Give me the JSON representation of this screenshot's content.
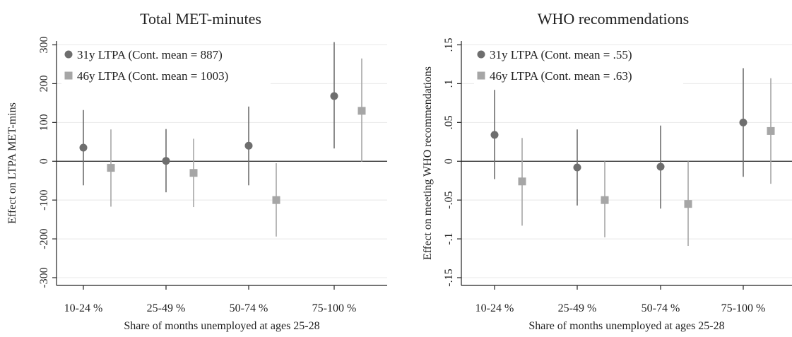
{
  "colors": {
    "series_31y": "#6e6e6e",
    "series_46y": "#a6a6a6",
    "axis": "#222222",
    "grid": "#e8e8e8"
  },
  "chart_data": [
    {
      "type": "scatter",
      "title": "Total MET-minutes",
      "xlabel": "Share of months unemployed at ages 25-28",
      "ylabel": "Effect on LTPA MET-mins",
      "categories": [
        "10-24 %",
        "25-49 %",
        "50-74 %",
        "75-100 %"
      ],
      "ylim": [
        -320,
        310
      ],
      "yticks": [
        -300,
        -200,
        -100,
        0,
        100,
        200,
        300
      ],
      "ytick_labels": [
        "-300",
        "-200",
        "-100",
        "0",
        "100",
        "200",
        "300"
      ],
      "grid": true,
      "zero_line": true,
      "legend_position": "top-left",
      "series": [
        {
          "name": "31y LTPA (Cont. mean = 887)",
          "marker": "circle",
          "values": [
            35,
            1,
            40,
            168
          ],
          "ci_low": [
            -62,
            -80,
            -62,
            33
          ],
          "ci_high": [
            132,
            83,
            141,
            307
          ]
        },
        {
          "name": "46y LTPA (Cont. mean = 1003)",
          "marker": "square",
          "values": [
            -17,
            -30,
            -100,
            130
          ],
          "ci_low": [
            -117,
            -118,
            -194,
            -1
          ],
          "ci_high": [
            82,
            58,
            -5,
            265
          ]
        }
      ]
    },
    {
      "type": "scatter",
      "title": "WHO recommendations",
      "xlabel": "Share of months unemployed at ages 25-28",
      "ylabel": "Effect on meeting WHO recommendations",
      "categories": [
        "10-24 %",
        "25-49 %",
        "50-74 %",
        "75-100 %"
      ],
      "ylim": [
        -0.16,
        0.155
      ],
      "yticks": [
        -0.15,
        -0.1,
        -0.05,
        0,
        0.05,
        0.1,
        0.15
      ],
      "ytick_labels": [
        "-.15",
        "-.1",
        "-.05",
        "0",
        ".05",
        ".1",
        ".15"
      ],
      "grid": true,
      "zero_line": true,
      "legend_position": "top-left",
      "series": [
        {
          "name": "31y LTPA (Cont. mean = .55)",
          "marker": "circle",
          "values": [
            0.034,
            -0.008,
            -0.007,
            0.05
          ],
          "ci_low": [
            -0.023,
            -0.057,
            -0.061,
            -0.02
          ],
          "ci_high": [
            0.092,
            0.041,
            0.046,
            0.12
          ]
        },
        {
          "name": "46y LTPA (Cont. mean = .63)",
          "marker": "square",
          "values": [
            -0.026,
            -0.05,
            -0.055,
            0.039
          ],
          "ci_low": [
            -0.083,
            -0.098,
            -0.109,
            -0.029
          ],
          "ci_high": [
            0.03,
            0,
            0,
            0.107
          ]
        }
      ]
    }
  ]
}
